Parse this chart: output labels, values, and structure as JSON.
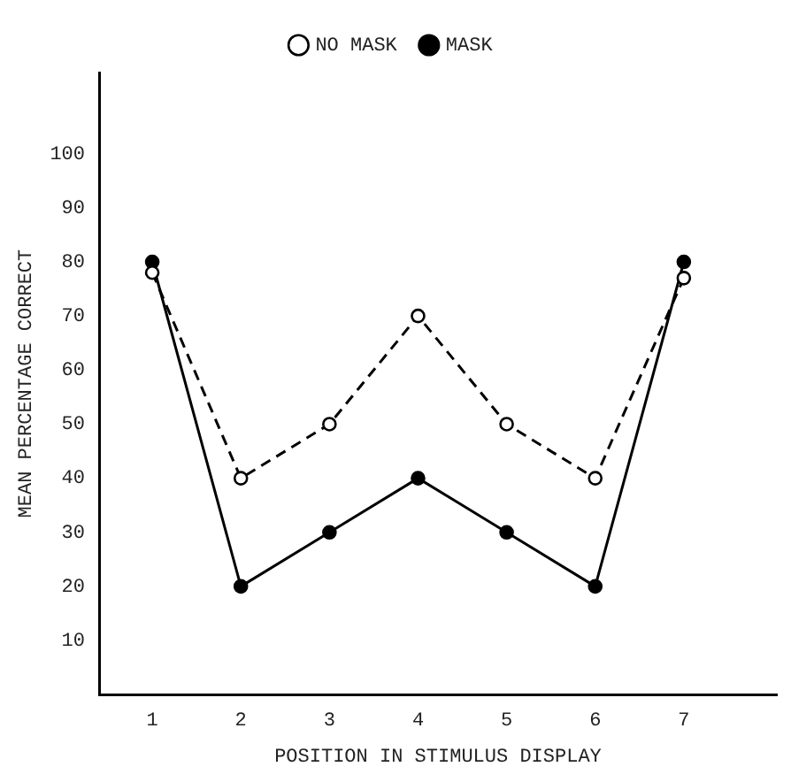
{
  "chart_data": {
    "type": "line",
    "xlabel": "POSITION IN STIMULUS DISPLAY",
    "ylabel": "MEAN PERCENTAGE CORRECT",
    "x": [
      1,
      2,
      3,
      4,
      5,
      6,
      7
    ],
    "series": [
      {
        "name": "NO MASK",
        "color": "#000000",
        "line_style": "dashed",
        "values": [
          78,
          40,
          50,
          70,
          50,
          40,
          77
        ]
      },
      {
        "name": "MASK",
        "color": "#000000",
        "line_style": "solid",
        "values": [
          80,
          20,
          30,
          40,
          30,
          20,
          80
        ]
      }
    ],
    "xlim": [
      0.4,
      8.05
    ],
    "xticks": [
      1,
      2,
      3,
      4,
      5,
      6,
      7
    ],
    "ylim": [
      0,
      115
    ],
    "yticks": [
      10,
      20,
      30,
      40,
      50,
      60,
      70,
      80,
      90,
      100
    ],
    "grid": false,
    "legend": "top",
    "marker": "circle"
  }
}
